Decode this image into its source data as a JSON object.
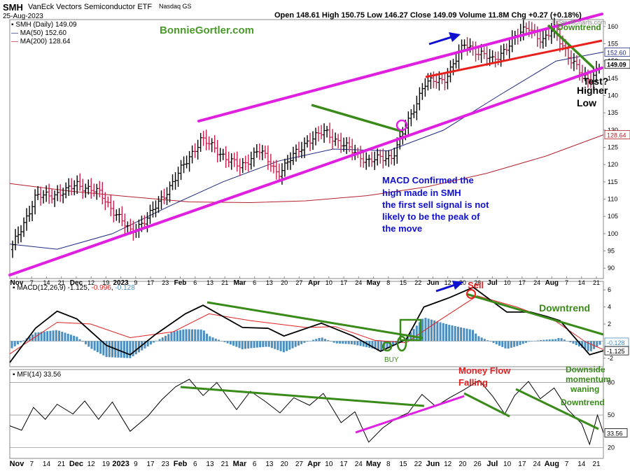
{
  "header": {
    "symbol": "SMH",
    "name": "VanEck Vectors Semiconductor ETF",
    "exchange": "Nasdaq GS",
    "date": "25-Aug-2023",
    "ohlc_text": "Open 148.61  High 150.75  Low 146.27  Close 149.09  Volume 11.8M  Chg +0.27 (+0.18%)",
    "source": "© StockCharts.com"
  },
  "legend": {
    "price": "SMH (Daily) 149.09",
    "ma50": "MA(50) 152.60",
    "ma200": "MA(200) 128.64",
    "macd_title": "MACD(12,26,9)",
    "macd_vals": [
      "-1.125",
      "-0.996",
      "-0.128"
    ],
    "mfi": "MFI(14) 33.56"
  },
  "annotations": {
    "watermark": "BonnieGortler.com",
    "downtrend_top": "Downtrend",
    "test_lines": [
      "Test?",
      "Higher",
      "Low"
    ],
    "macd_note": [
      "MACD Confirmed the",
      "high made in SMH",
      "the first sell signal is not",
      "likely to be the peak of",
      "the move"
    ],
    "sell": "Sell",
    "buy": "BUY",
    "macd_downtrend": "Downtrend",
    "money_flow": [
      "Money Flow",
      "Falling"
    ],
    "downside": [
      "Downside",
      "momentum",
      "waning"
    ],
    "mfi_downtrend": "Downtrend"
  },
  "colors": {
    "channel": "#e020e0",
    "green_trend": "#3a8a1a",
    "red_trend": "#e8201c",
    "ma50": "#1f2a80",
    "ma200": "#b4202c",
    "annotation_blue": "#1010d0",
    "bar_up": "#000000",
    "bar_down": "#c8204c",
    "histogram": "#4a8fc0",
    "signal": "#e02020"
  },
  "chart_data": [
    {
      "type": "ohlc",
      "title": "SMH (Daily)",
      "ylim": [
        87,
        162
      ],
      "yticks": [
        90,
        95,
        100,
        105,
        110,
        115,
        120,
        125,
        130,
        135,
        140,
        145,
        150,
        155,
        160
      ],
      "x_tick_labels": [
        "Nov",
        "7",
        "14",
        "21",
        "Dec",
        "12",
        "19",
        "2023",
        "9",
        "17",
        "23",
        "Feb",
        "6",
        "13",
        "21",
        "Mar",
        "6",
        "13",
        "20",
        "27",
        "Apr",
        "10",
        "17",
        "24",
        "May",
        "8",
        "15",
        "22",
        "Jun",
        "12",
        "20",
        "26",
        "Jul",
        "10",
        "17",
        "24",
        "Aug",
        "7",
        "14",
        "21"
      ],
      "close_path": [
        [
          "2022-10-28",
          94.5
        ],
        [
          "2022-11-10",
          110.5
        ],
        [
          "2022-11-25",
          112
        ],
        [
          "2022-12-01",
          114.5
        ],
        [
          "2022-12-13",
          111.5
        ],
        [
          "2022-12-28",
          100.5
        ],
        [
          "2023-01-06",
          104.5
        ],
        [
          "2023-01-20",
          116
        ],
        [
          "2023-02-02",
          127.5
        ],
        [
          "2023-02-22",
          119
        ],
        [
          "2023-03-03",
          124.5
        ],
        [
          "2023-03-13",
          117.5
        ],
        [
          "2023-03-28",
          127
        ],
        [
          "2023-04-06",
          129.5
        ],
        [
          "2023-04-18",
          124.5
        ],
        [
          "2023-04-28",
          121
        ],
        [
          "2023-05-10",
          122.5
        ],
        [
          "2023-05-19",
          133.5
        ],
        [
          "2023-05-26",
          143.5
        ],
        [
          "2023-06-05",
          144.5
        ],
        [
          "2023-06-16",
          155
        ],
        [
          "2023-06-30",
          150
        ],
        [
          "2023-07-18",
          160.5
        ],
        [
          "2023-07-25",
          155
        ],
        [
          "2023-07-31",
          160
        ],
        [
          "2023-08-08",
          150
        ],
        [
          "2023-08-18",
          144.5
        ],
        [
          "2023-08-25",
          149.09
        ]
      ],
      "ma50_path": [
        [
          "2022-10-28",
          97
        ],
        [
          "2022-11-21",
          95.5
        ],
        [
          "2022-12-19",
          100
        ],
        [
          "2023-01-17",
          108
        ],
        [
          "2023-02-13",
          115
        ],
        [
          "2023-03-13",
          121
        ],
        [
          "2023-04-10",
          124.5
        ],
        [
          "2023-05-08",
          124
        ],
        [
          "2023-06-05",
          130
        ],
        [
          "2023-07-03",
          140
        ],
        [
          "2023-08-01",
          150
        ],
        [
          "2023-08-25",
          152.6
        ]
      ],
      "ma200_path": [
        [
          "2022-10-28",
          114.5
        ],
        [
          "2022-11-28",
          112.3
        ],
        [
          "2022-12-28",
          110.7
        ],
        [
          "2023-01-27",
          109.2
        ],
        [
          "2023-02-27",
          109
        ],
        [
          "2023-03-27",
          109.5
        ],
        [
          "2023-04-27",
          111
        ],
        [
          "2023-05-27",
          113.5
        ],
        [
          "2023-06-27",
          117.5
        ],
        [
          "2023-07-27",
          122.5
        ],
        [
          "2023-08-25",
          128.64
        ]
      ],
      "last_values": {
        "ma50": "152.60",
        "close": "149.09",
        "ma200": "128.64"
      }
    },
    {
      "type": "line",
      "title": "MACD(12,26,9)",
      "ylim": [
        -3,
        7
      ],
      "yticks": [
        6,
        4,
        2,
        -2
      ],
      "macd_path": [
        [
          "2022-10-28",
          -2.5
        ],
        [
          "2022-11-10",
          1.5
        ],
        [
          "2022-11-21",
          3.5
        ],
        [
          "2022-12-01",
          2.6
        ],
        [
          "2022-12-16",
          -0.5
        ],
        [
          "2022-12-28",
          -1.6
        ],
        [
          "2023-01-10",
          0.8
        ],
        [
          "2023-01-25",
          3.2
        ],
        [
          "2023-02-03",
          4.2
        ],
        [
          "2023-02-23",
          1.6
        ],
        [
          "2023-03-08",
          1.5
        ],
        [
          "2023-03-16",
          0.6
        ],
        [
          "2023-04-04",
          2.1
        ],
        [
          "2023-04-20",
          0.6
        ],
        [
          "2023-05-04",
          -1.2
        ],
        [
          "2023-05-17",
          0.2
        ],
        [
          "2023-05-26",
          4
        ],
        [
          "2023-06-08",
          5.1
        ],
        [
          "2023-06-20",
          6.3
        ],
        [
          "2023-07-07",
          3.4
        ],
        [
          "2023-07-19",
          3.4
        ],
        [
          "2023-07-27",
          2.9
        ],
        [
          "2023-08-03",
          2.4
        ],
        [
          "2023-08-18",
          -1.6
        ],
        [
          "2023-08-25",
          -1.125
        ]
      ],
      "signal_path": [
        [
          "2022-10-28",
          -1.5
        ],
        [
          "2022-11-21",
          2.2
        ],
        [
          "2022-12-08",
          2
        ],
        [
          "2022-12-28",
          0.4
        ],
        [
          "2023-01-19",
          1.1
        ],
        [
          "2023-02-06",
          3.2
        ],
        [
          "2023-02-27",
          2.4
        ],
        [
          "2023-03-27",
          1.6
        ],
        [
          "2023-04-11",
          1.7
        ],
        [
          "2023-05-01",
          0.1
        ],
        [
          "2023-05-17",
          -0.2
        ],
        [
          "2023-06-02",
          2.3
        ],
        [
          "2023-06-22",
          5.3
        ],
        [
          "2023-07-12",
          4
        ],
        [
          "2023-08-01",
          2.3
        ],
        [
          "2023-08-16",
          -0.1
        ],
        [
          "2023-08-25",
          -0.996
        ]
      ],
      "last_values": [
        "-0.128",
        "-1.125"
      ]
    },
    {
      "type": "line",
      "title": "MFI(14)",
      "ylim": [
        10,
        92
      ],
      "yticks": [
        80,
        50,
        20
      ],
      "mfi_path": [
        [
          "2022-10-28",
          40
        ],
        [
          "2022-11-03",
          36
        ],
        [
          "2022-11-09",
          57
        ],
        [
          "2022-11-15",
          46
        ],
        [
          "2022-11-21",
          60
        ],
        [
          "2022-11-29",
          51
        ],
        [
          "2022-12-05",
          63
        ],
        [
          "2022-12-12",
          46
        ],
        [
          "2022-12-19",
          62
        ],
        [
          "2022-12-28",
          35
        ],
        [
          "2023-01-06",
          49
        ],
        [
          "2023-01-13",
          64
        ],
        [
          "2023-01-20",
          76
        ],
        [
          "2023-01-27",
          83
        ],
        [
          "2023-02-03",
          68
        ],
        [
          "2023-02-10",
          80
        ],
        [
          "2023-02-20",
          55
        ],
        [
          "2023-02-27",
          72
        ],
        [
          "2023-03-07",
          62
        ],
        [
          "2023-03-14",
          52
        ],
        [
          "2023-03-21",
          66
        ],
        [
          "2023-03-29",
          59
        ],
        [
          "2023-04-05",
          70
        ],
        [
          "2023-04-14",
          43
        ],
        [
          "2023-04-21",
          53
        ],
        [
          "2023-04-28",
          25
        ],
        [
          "2023-05-05",
          38
        ],
        [
          "2023-05-12",
          47
        ],
        [
          "2023-05-18",
          52
        ],
        [
          "2023-05-25",
          69
        ],
        [
          "2023-06-01",
          58
        ],
        [
          "2023-06-08",
          66
        ],
        [
          "2023-06-15",
          73
        ],
        [
          "2023-06-23",
          82
        ],
        [
          "2023-06-30",
          67
        ],
        [
          "2023-07-06",
          51
        ],
        [
          "2023-07-11",
          68
        ],
        [
          "2023-07-18",
          81
        ],
        [
          "2023-07-24",
          65
        ],
        [
          "2023-07-31",
          75
        ],
        [
          "2023-08-07",
          55
        ],
        [
          "2023-08-14",
          42
        ],
        [
          "2023-08-18",
          23
        ],
        [
          "2023-08-22",
          50
        ],
        [
          "2023-08-25",
          33.56
        ]
      ],
      "last_value": "33.56"
    }
  ]
}
